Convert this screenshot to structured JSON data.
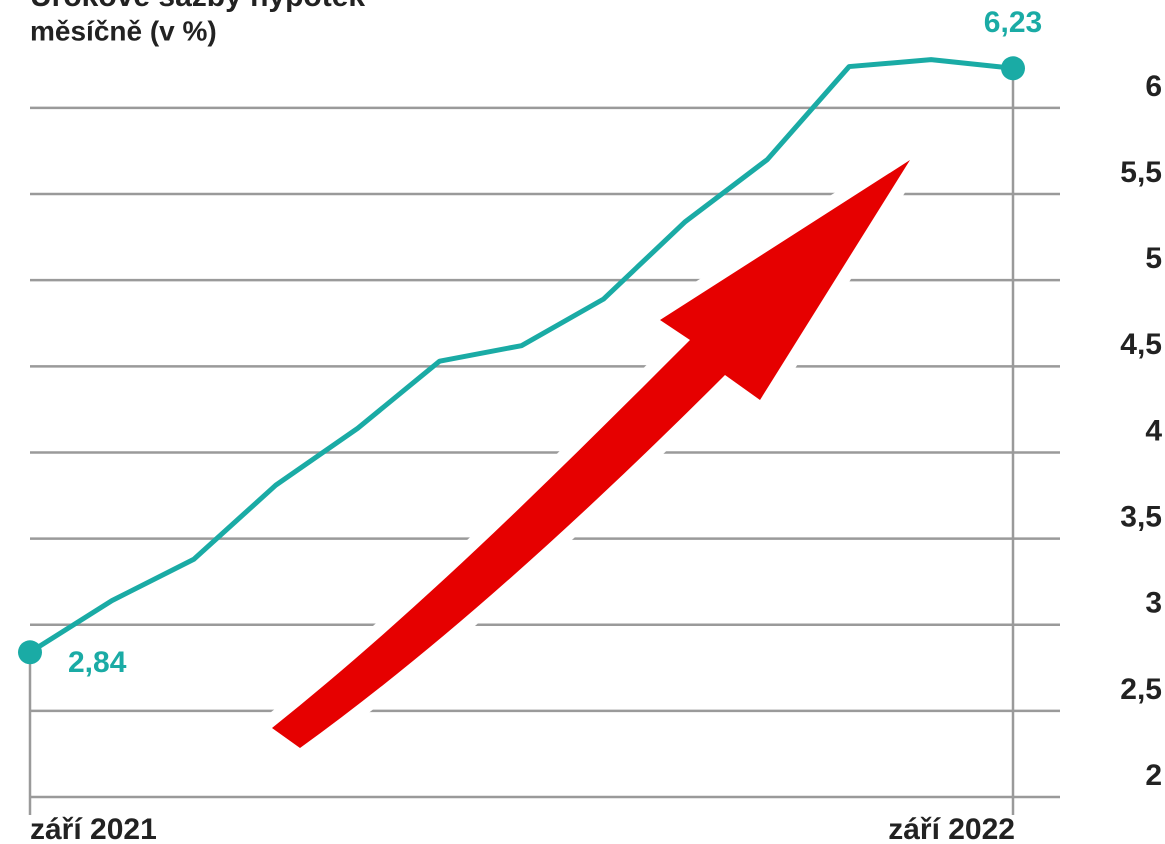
{
  "chart_data": {
    "type": "line",
    "title": "Úrokové sazby hypoték",
    "subtitle": "měsíčně (v %)",
    "categories": [
      "září 2021",
      null,
      null,
      null,
      null,
      null,
      null,
      null,
      null,
      null,
      null,
      null,
      "září 2022"
    ],
    "series": [
      {
        "color": "#1aaba5",
        "values": [
          2.84,
          3.14,
          3.38,
          3.81,
          4.14,
          4.53,
          4.62,
          4.89,
          5.34,
          5.7,
          6.24,
          6.28,
          6.23
        ],
        "value_labels": [
          "2,84",
          null,
          null,
          null,
          null,
          null,
          null,
          null,
          null,
          null,
          null,
          null,
          "6,23"
        ]
      }
    ],
    "ylim": [
      2,
      6.4
    ],
    "yticks": [
      2,
      {
        "value": 2.5,
        "label": "2,5"
      },
      3,
      {
        "value": 3.5,
        "label": "3,5"
      },
      4,
      {
        "value": 4.5,
        "label": "4,5"
      },
      5,
      {
        "value": 5.5,
        "label": "5,5"
      },
      6
    ],
    "grid": true
  }
}
